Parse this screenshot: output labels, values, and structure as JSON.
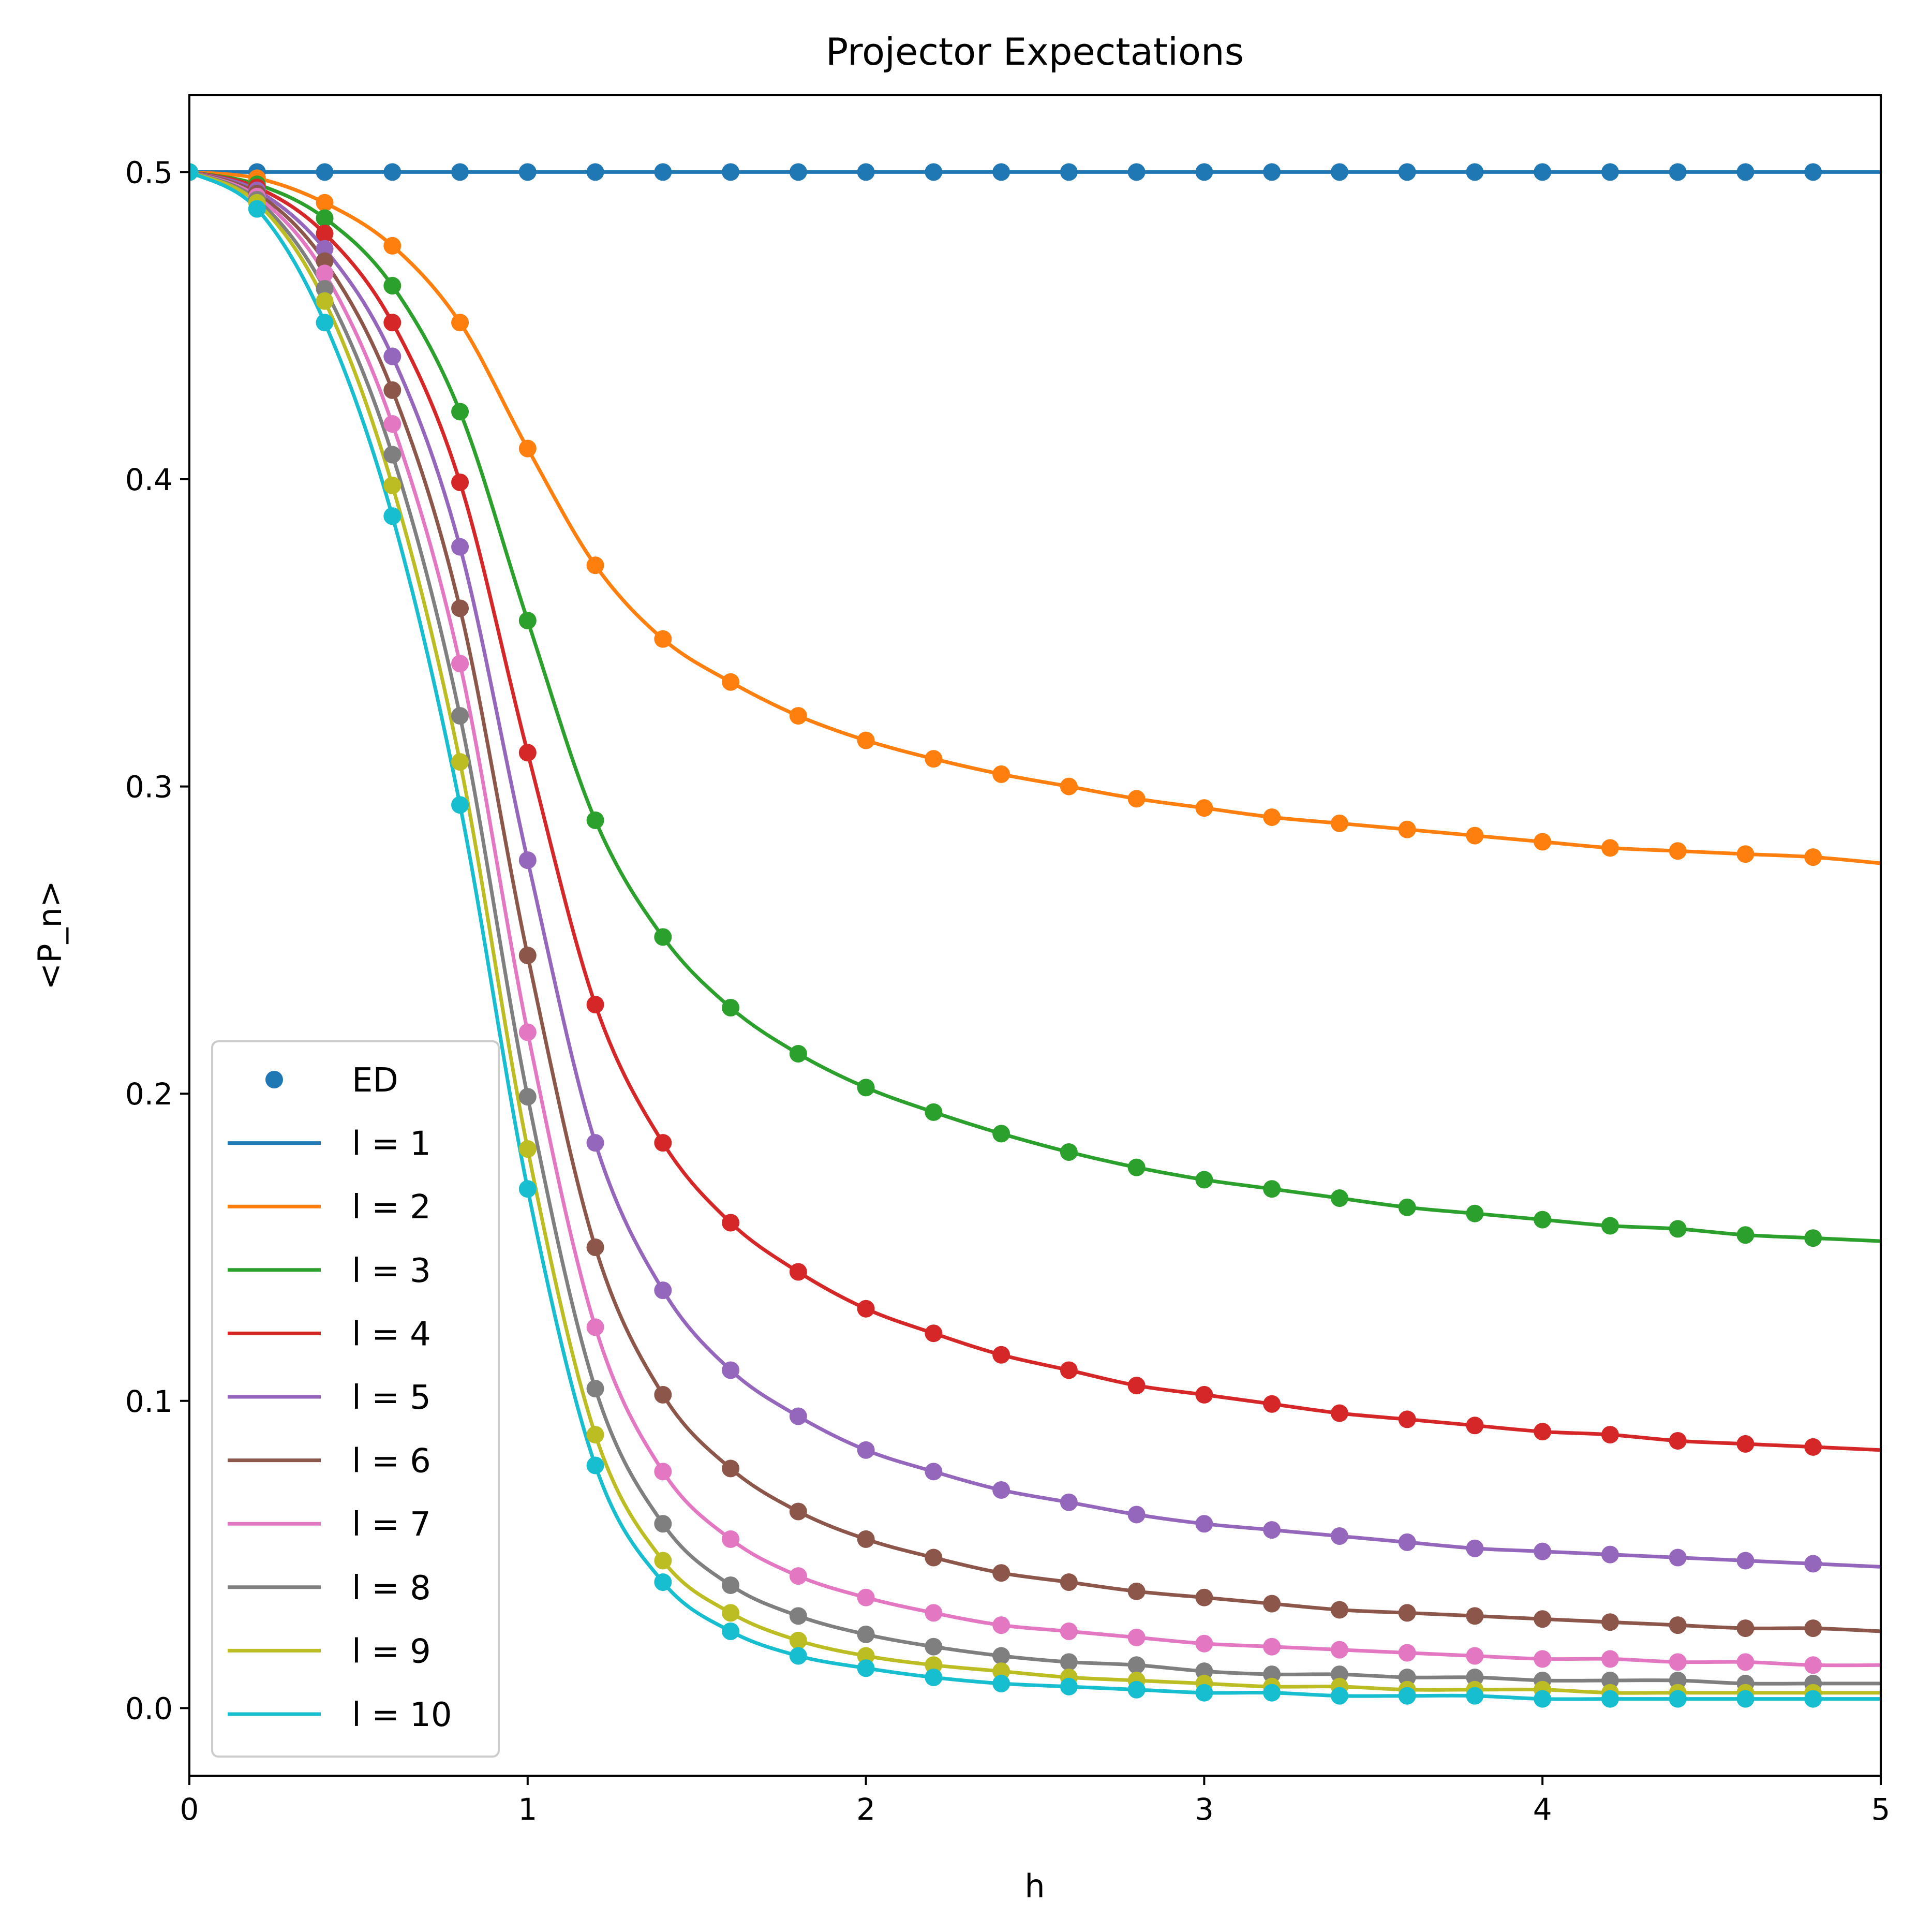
{
  "chart_data": {
    "type": "line",
    "title": "Projector Expectations",
    "xlabel": "h",
    "ylabel": "<P_n>",
    "xlim": [
      0,
      5
    ],
    "ylim": [
      -0.022,
      0.525
    ],
    "xticks": [
      0,
      1,
      2,
      3,
      4,
      5
    ],
    "xtick_labels": [
      "0",
      "1",
      "2",
      "3",
      "4",
      "5"
    ],
    "yticks": [
      0.0,
      0.1,
      0.2,
      0.3,
      0.4,
      0.5
    ],
    "ytick_labels": [
      "0.0",
      "0.1",
      "0.2",
      "0.3",
      "0.4",
      "0.5"
    ],
    "grid": false,
    "legend_position": "lower-left",
    "legend": {
      "marker_entry": "ED",
      "marker_color": "#1f77b4"
    },
    "x": [
      0,
      0.2,
      0.4,
      0.6,
      0.8,
      1.0,
      1.2,
      1.4,
      1.6,
      1.8,
      2.0,
      2.2,
      2.4,
      2.6,
      2.8,
      3.0,
      3.2,
      3.4,
      3.6,
      3.8,
      4.0,
      4.2,
      4.4,
      4.6,
      4.8,
      5.0
    ],
    "series": [
      {
        "name": "l = 1",
        "color": "#1f77b4",
        "values": [
          0.5,
          0.5,
          0.5,
          0.5,
          0.5,
          0.5,
          0.5,
          0.5,
          0.5,
          0.5,
          0.5,
          0.5,
          0.5,
          0.5,
          0.5,
          0.5,
          0.5,
          0.5,
          0.5,
          0.5,
          0.5,
          0.5,
          0.5,
          0.5,
          0.5,
          0.5
        ]
      },
      {
        "name": "l = 2",
        "color": "#ff7f0e",
        "values": [
          0.5,
          0.498,
          0.49,
          0.476,
          0.451,
          0.41,
          0.372,
          0.348,
          0.334,
          0.323,
          0.315,
          0.309,
          0.304,
          0.3,
          0.296,
          0.293,
          0.29,
          0.288,
          0.286,
          0.284,
          0.282,
          0.28,
          0.279,
          0.278,
          0.277,
          0.275
        ]
      },
      {
        "name": "l = 3",
        "color": "#2ca02c",
        "values": [
          0.5,
          0.496,
          0.485,
          0.463,
          0.422,
          0.354,
          0.289,
          0.251,
          0.228,
          0.213,
          0.202,
          0.194,
          0.187,
          0.181,
          0.176,
          0.172,
          0.169,
          0.166,
          0.163,
          0.161,
          0.159,
          0.157,
          0.156,
          0.154,
          0.153,
          0.152
        ]
      },
      {
        "name": "l = 4",
        "color": "#d62728",
        "values": [
          0.5,
          0.495,
          0.48,
          0.451,
          0.399,
          0.311,
          0.229,
          0.184,
          0.158,
          0.142,
          0.13,
          0.122,
          0.115,
          0.11,
          0.105,
          0.102,
          0.099,
          0.096,
          0.094,
          0.092,
          0.09,
          0.089,
          0.087,
          0.086,
          0.085,
          0.084
        ]
      },
      {
        "name": "l = 5",
        "color": "#9467bd",
        "values": [
          0.5,
          0.494,
          0.475,
          0.44,
          0.378,
          0.276,
          0.184,
          0.136,
          0.11,
          0.095,
          0.084,
          0.077,
          0.071,
          0.067,
          0.063,
          0.06,
          0.058,
          0.056,
          0.054,
          0.052,
          0.051,
          0.05,
          0.049,
          0.048,
          0.047,
          0.046
        ]
      },
      {
        "name": "l = 6",
        "color": "#8c564b",
        "values": [
          0.5,
          0.493,
          0.471,
          0.429,
          0.358,
          0.245,
          0.15,
          0.102,
          0.078,
          0.064,
          0.055,
          0.049,
          0.044,
          0.041,
          0.038,
          0.036,
          0.034,
          0.032,
          0.031,
          0.03,
          0.029,
          0.028,
          0.027,
          0.026,
          0.026,
          0.025
        ]
      },
      {
        "name": "l = 7",
        "color": "#e377c2",
        "values": [
          0.5,
          0.492,
          0.467,
          0.418,
          0.34,
          0.22,
          0.124,
          0.077,
          0.055,
          0.043,
          0.036,
          0.031,
          0.027,
          0.025,
          0.023,
          0.021,
          0.02,
          0.019,
          0.018,
          0.017,
          0.016,
          0.016,
          0.015,
          0.015,
          0.014,
          0.014
        ]
      },
      {
        "name": "l = 8",
        "color": "#7f7f7f",
        "values": [
          0.5,
          0.491,
          0.462,
          0.408,
          0.323,
          0.199,
          0.104,
          0.06,
          0.04,
          0.03,
          0.024,
          0.02,
          0.017,
          0.015,
          0.014,
          0.012,
          0.011,
          0.011,
          0.01,
          0.01,
          0.009,
          0.009,
          0.009,
          0.008,
          0.008,
          0.008
        ]
      },
      {
        "name": "l = 9",
        "color": "#bcbd22",
        "values": [
          0.5,
          0.49,
          0.458,
          0.398,
          0.308,
          0.182,
          0.089,
          0.048,
          0.031,
          0.022,
          0.017,
          0.014,
          0.012,
          0.01,
          0.009,
          0.008,
          0.007,
          0.007,
          0.006,
          0.006,
          0.006,
          0.005,
          0.005,
          0.005,
          0.005,
          0.005
        ]
      },
      {
        "name": "l = 10",
        "color": "#17becf",
        "values": [
          0.5,
          0.488,
          0.451,
          0.388,
          0.294,
          0.169,
          0.079,
          0.041,
          0.025,
          0.017,
          0.013,
          0.01,
          0.008,
          0.007,
          0.006,
          0.005,
          0.005,
          0.004,
          0.004,
          0.004,
          0.003,
          0.003,
          0.003,
          0.003,
          0.003,
          0.003
        ]
      }
    ]
  }
}
